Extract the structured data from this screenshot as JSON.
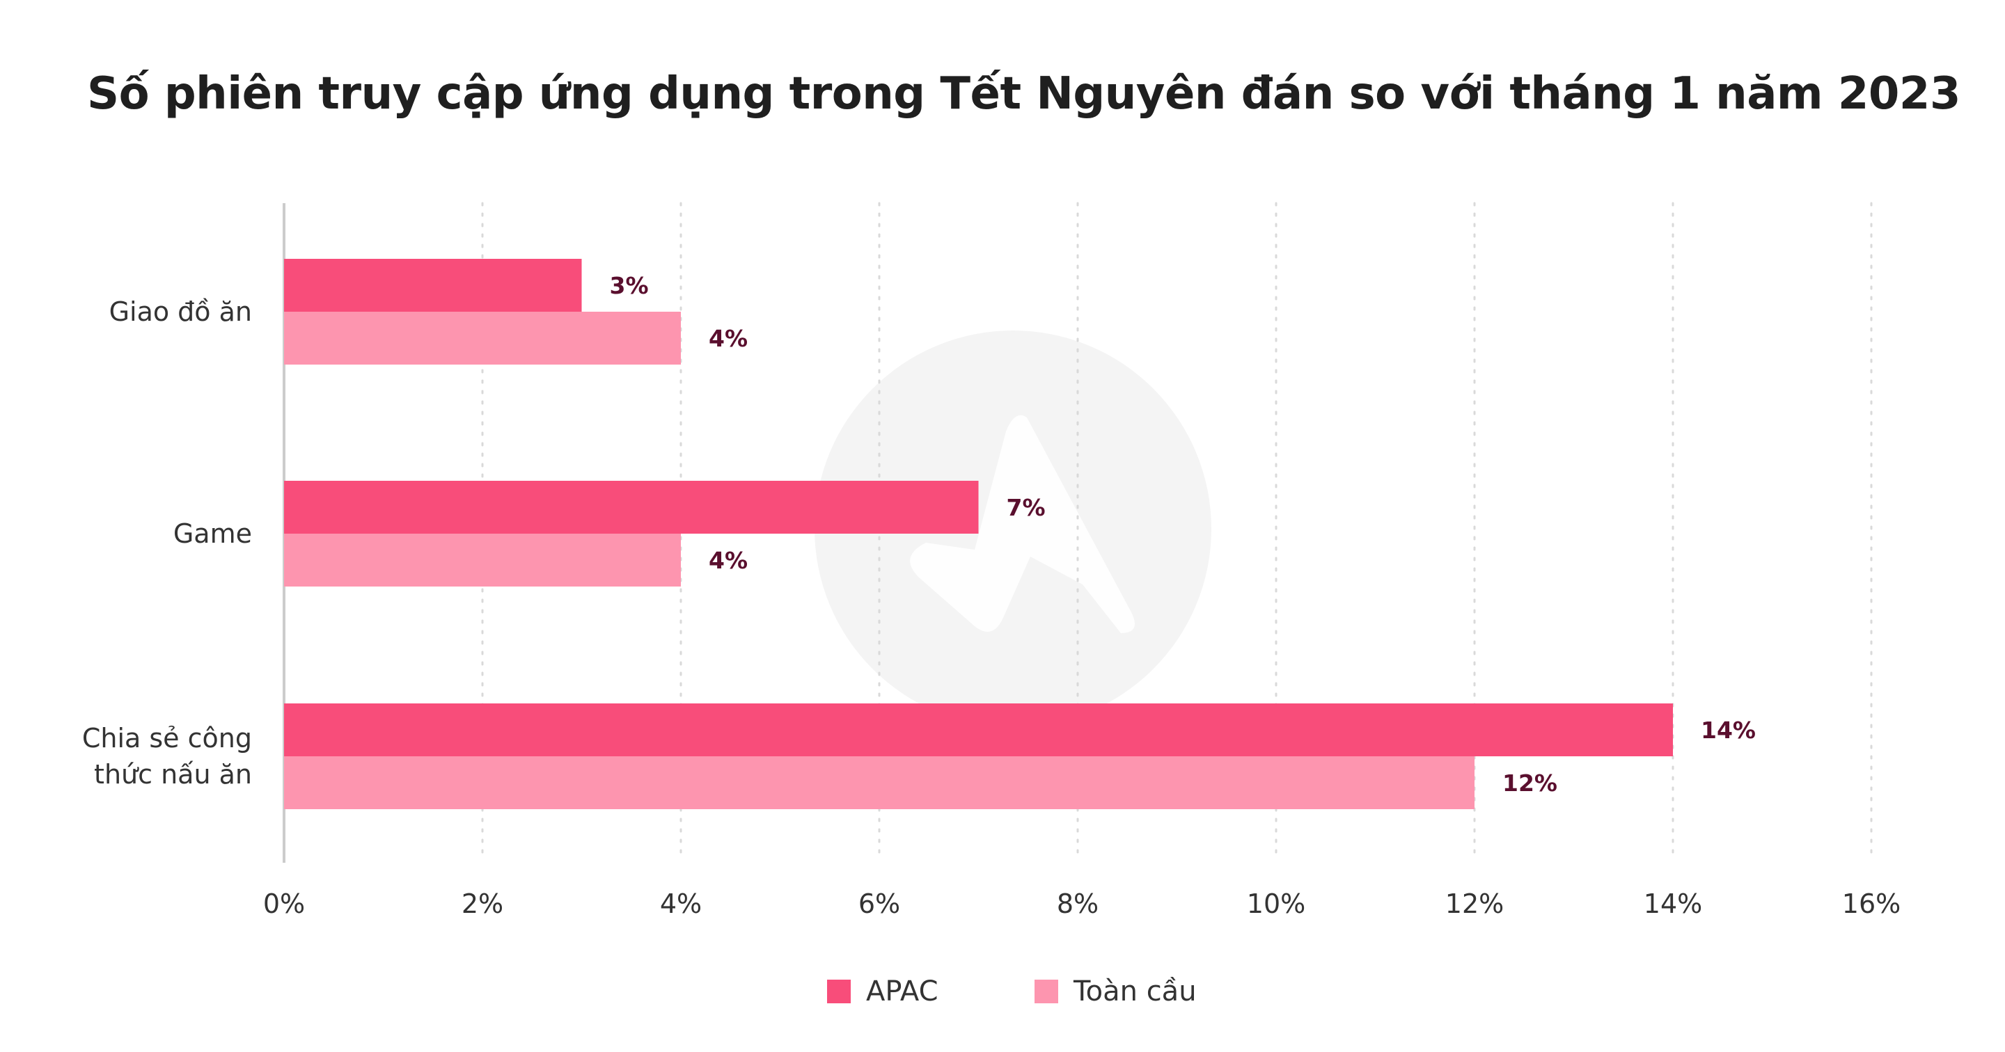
{
  "chart_data": {
    "type": "bar",
    "orientation": "horizontal",
    "title": "Số phiên truy cập ứng dụng trong Tết Nguyên đán so với tháng 1 năm 2023",
    "categories": [
      [
        "Giao đồ ăn"
      ],
      [
        "Game"
      ],
      [
        "Chia sẻ công",
        "thức nấu ăn"
      ]
    ],
    "series": [
      {
        "name": "APAC",
        "values": [
          3,
          7,
          14
        ],
        "labels": [
          "3%",
          "7%",
          "14%"
        ],
        "color": "#f84d7a"
      },
      {
        "name": "Toàn cầu",
        "values": [
          4,
          4,
          12
        ],
        "labels": [
          "4%",
          "4%",
          "12%"
        ],
        "color": "#fd95af"
      }
    ],
    "xlim": [
      0,
      16
    ],
    "ticks": [
      0,
      2,
      4,
      6,
      8,
      10,
      12,
      14,
      16
    ],
    "tick_labels": [
      "0%",
      "2%",
      "4%",
      "6%",
      "8%",
      "10%",
      "12%",
      "14%",
      "16%"
    ],
    "grid": "vertical-dotted",
    "legend_position": "bottom-center"
  },
  "watermark": {
    "icon": "brand-logo-watermark",
    "color": "#f4f4f4"
  },
  "colors": {
    "axis": "#cccccc",
    "grid": "#d9d9d9",
    "label": "#5a0f2e"
  }
}
